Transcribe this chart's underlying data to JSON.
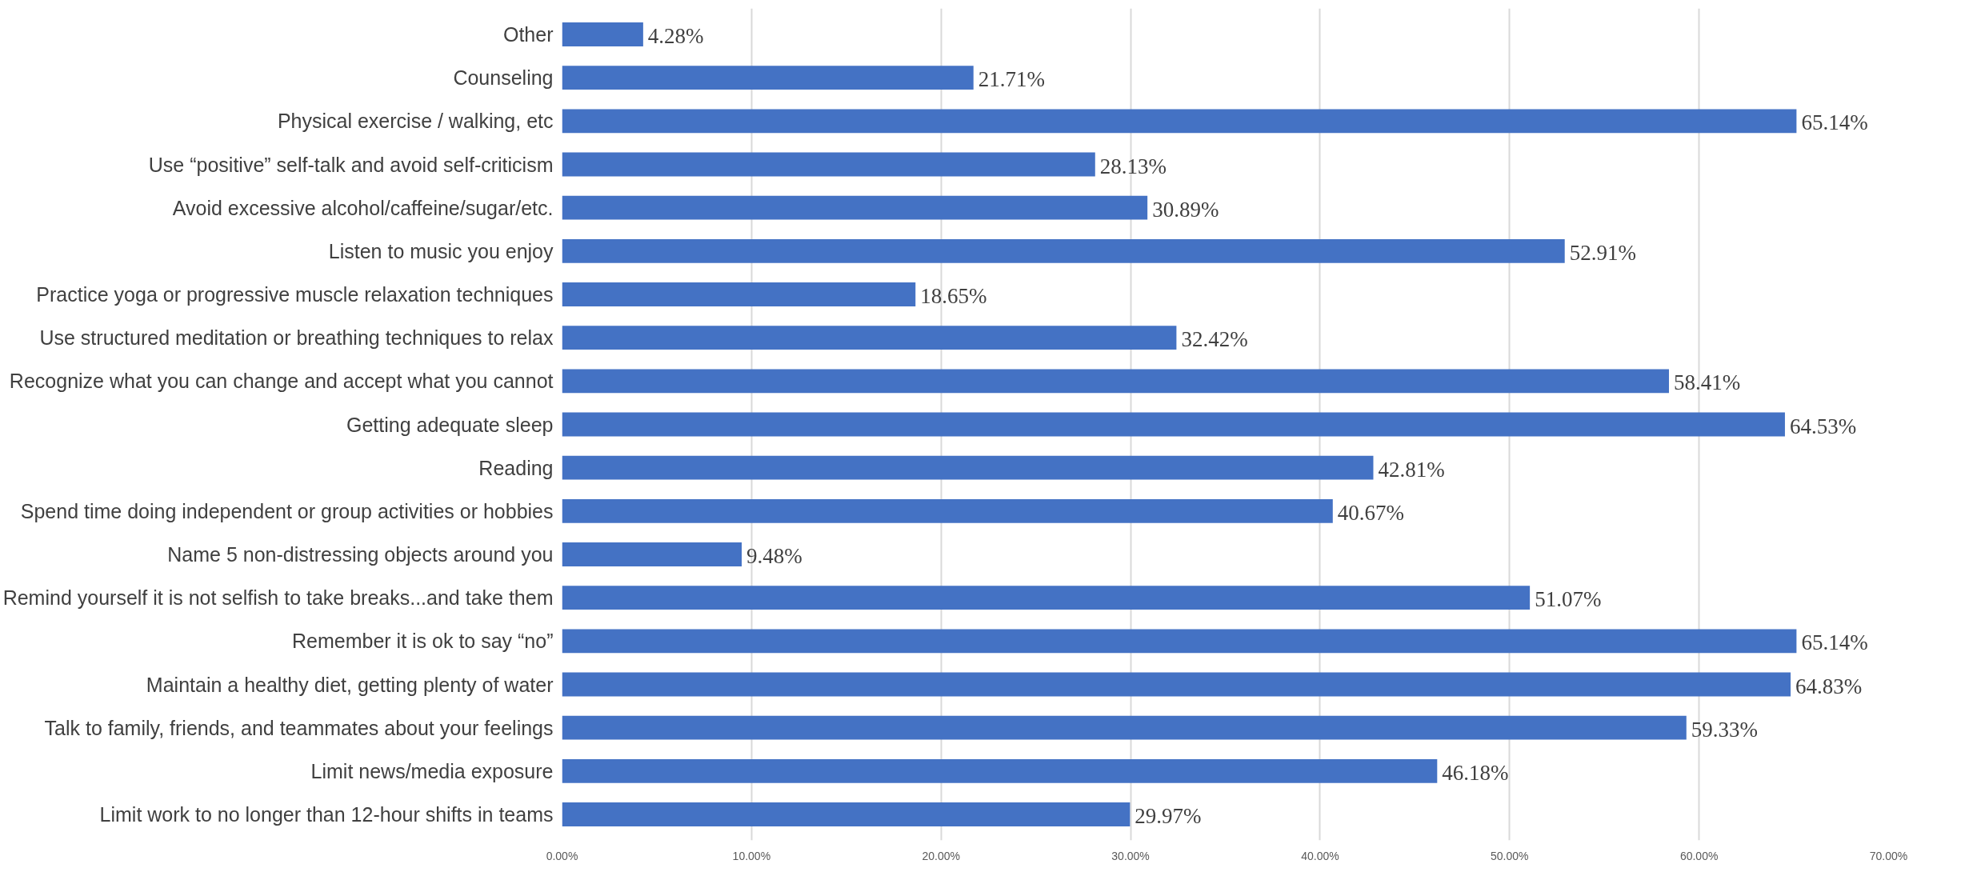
{
  "chart_data": {
    "type": "bar",
    "orientation": "horizontal",
    "categories": [
      "Other",
      "Counseling",
      "Physical exercise / walking, etc",
      "Use “positive” self-talk and avoid self-criticism",
      "Avoid excessive alcohol/caffeine/sugar/etc.",
      "Listen to music you enjoy",
      "Practice yoga or progressive muscle relaxation techniques",
      "Use structured meditation or breathing techniques to relax",
      "Recognize what you can change and accept what you cannot",
      "Getting adequate sleep",
      "Reading",
      "Spend time doing independent or group activities or hobbies",
      "Name 5 non-distressing objects around you",
      "Remind yourself it is not selfish to take breaks...and take them",
      "Remember it is ok to say “no”",
      "Maintain a healthy diet, getting plenty of water",
      "Talk to family, friends, and teammates about your feelings",
      "Limit news/media exposure",
      "Limit work to no longer than 12-hour shifts in teams"
    ],
    "values": [
      4.28,
      21.71,
      65.14,
      28.13,
      30.89,
      52.91,
      18.65,
      32.42,
      58.41,
      64.53,
      42.81,
      40.67,
      9.48,
      51.07,
      65.14,
      64.83,
      59.33,
      46.18,
      29.97
    ],
    "value_labels": [
      "4.28%",
      "21.71%",
      "65.14%",
      "28.13%",
      "30.89%",
      "52.91%",
      "18.65%",
      "32.42%",
      "58.41%",
      "64.53%",
      "42.81%",
      "40.67%",
      "9.48%",
      "51.07%",
      "65.14%",
      "64.83%",
      "59.33%",
      "46.18%",
      "29.97%"
    ],
    "color": "#4472c4",
    "xlim": [
      0,
      70
    ],
    "xticks": [
      {
        "value": 0,
        "label": "0.00%"
      },
      {
        "value": 10,
        "label": "10.00%"
      },
      {
        "value": 20,
        "label": "20.00%"
      },
      {
        "value": 30,
        "label": "30.00%"
      },
      {
        "value": 40,
        "label": "40.00%"
      },
      {
        "value": 50,
        "label": "50.00%"
      },
      {
        "value": 60,
        "label": "60.00%"
      },
      {
        "value": 70,
        "label": "70.00%"
      }
    ],
    "grid": "x"
  }
}
